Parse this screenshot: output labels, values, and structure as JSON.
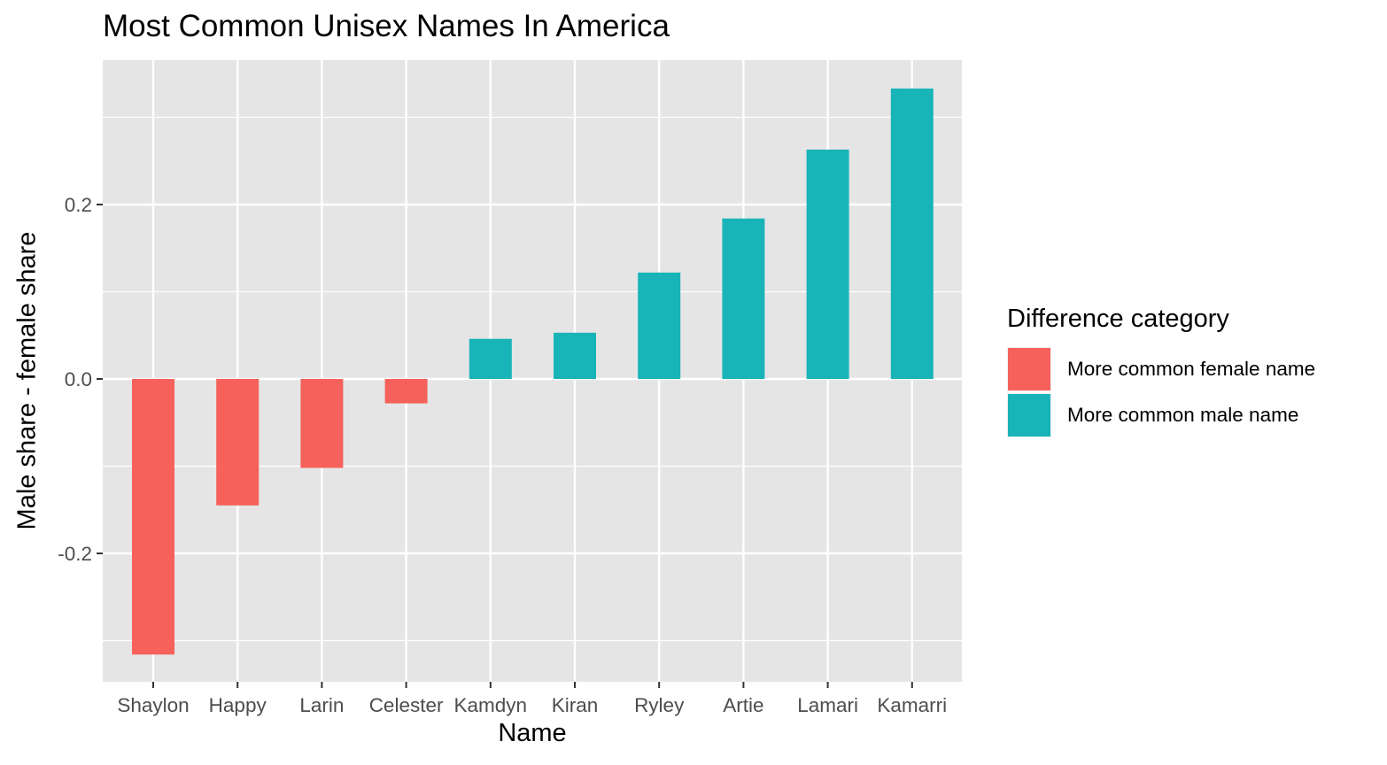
{
  "chart_data": {
    "type": "bar",
    "title": "Most Common Unisex Names In America",
    "xlabel": "Name",
    "ylabel": "Male share - female share",
    "categories": [
      "Shaylon",
      "Happy",
      "Larin",
      "Celester",
      "Kamdyn",
      "Kiran",
      "Ryley",
      "Artie",
      "Lamari",
      "Kamarri"
    ],
    "values": [
      -0.316,
      -0.145,
      -0.102,
      -0.028,
      0.046,
      0.053,
      0.122,
      0.184,
      0.263,
      0.333
    ],
    "fill_group": [
      "More common female name",
      "More common female name",
      "More common female name",
      "More common female name",
      "More common male name",
      "More common male name",
      "More common male name",
      "More common male name",
      "More common male name",
      "More common male name"
    ],
    "ylim": [
      -0.35,
      0.35
    ],
    "yticks": [
      -0.2,
      0.0,
      0.2
    ],
    "ytick_labels": [
      "-0.2",
      "0.0",
      "0.2"
    ],
    "grid": true,
    "legend": {
      "title": "Difference category",
      "placement": "right",
      "items": [
        {
          "label": "More common female name",
          "color": "#f8766d"
        },
        {
          "label": "More common male name",
          "color": "#19b4b8"
        }
      ]
    },
    "colors": {
      "panel": "#e5e5e5",
      "grid": "#ffffff",
      "female": "#f6615b",
      "male": "#19b4b8"
    }
  }
}
